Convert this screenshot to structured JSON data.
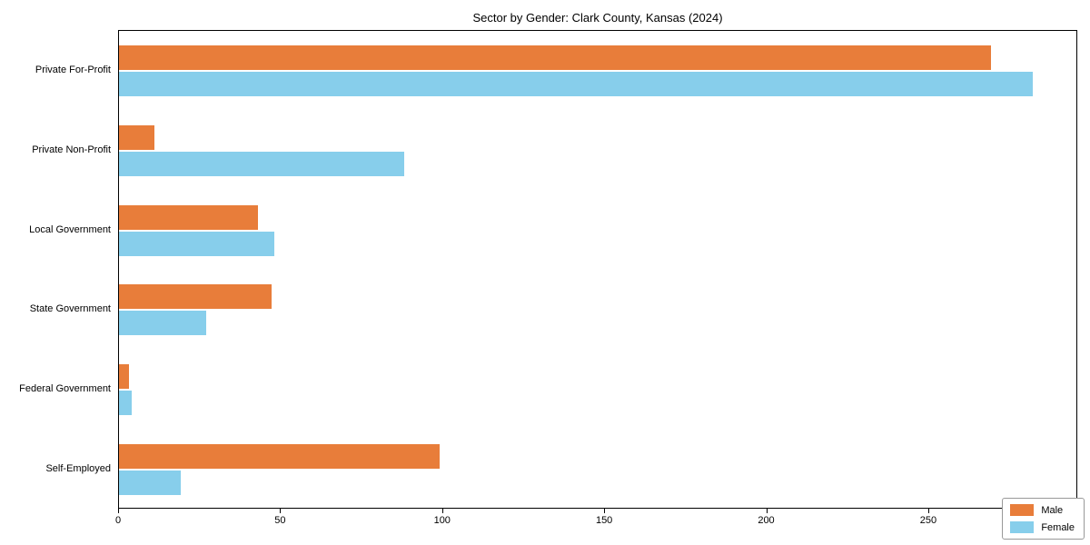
{
  "chart_data": {
    "type": "bar",
    "orientation": "horizontal",
    "title": "Sector by Gender: Clark County, Kansas (2024)",
    "categories": [
      "Private For-Profit",
      "Private Non-Profit",
      "Local Government",
      "State Government",
      "Federal Government",
      "Self-Employed"
    ],
    "series": [
      {
        "name": "Male",
        "color": "#e87d3a",
        "values": [
          269,
          11,
          43,
          47,
          3,
          99
        ]
      },
      {
        "name": "Female",
        "color": "#87ceeb",
        "values": [
          282,
          88,
          48,
          27,
          4,
          19
        ]
      }
    ],
    "xlabel": "",
    "ylabel": "",
    "xlim": [
      0,
      296
    ],
    "x_ticks": [
      0,
      50,
      100,
      150,
      200,
      250
    ],
    "grid": false,
    "legend_position": "lower right"
  }
}
